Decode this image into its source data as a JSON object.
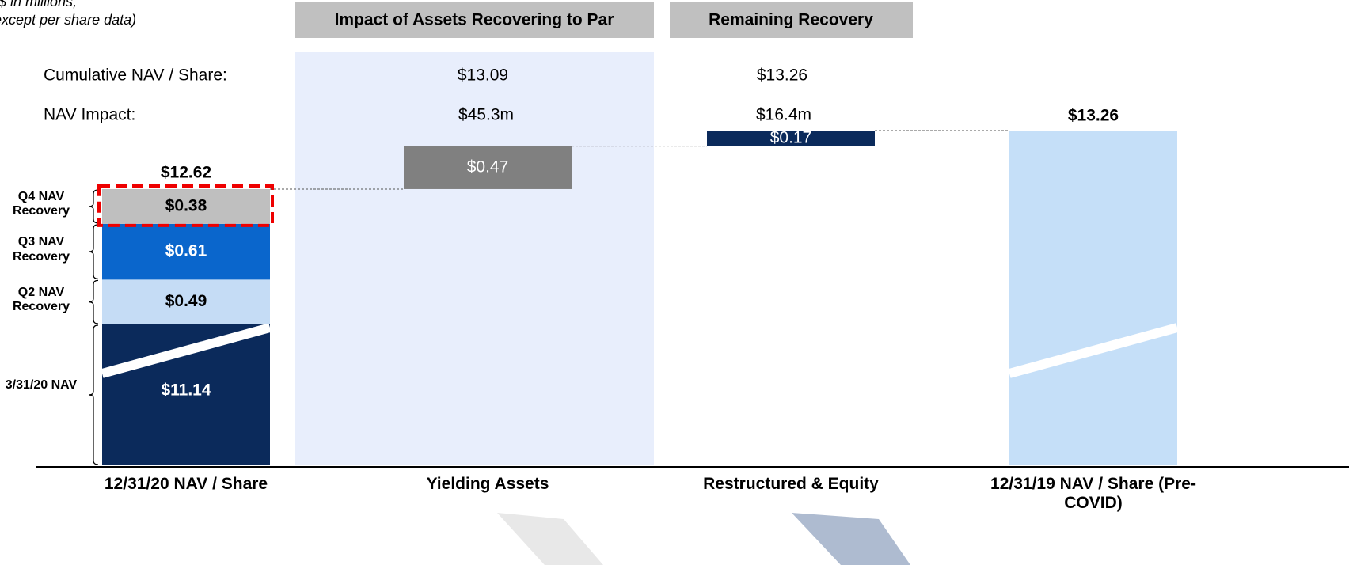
{
  "chart_data": {
    "type": "waterfall",
    "note": [
      "($ in millions,",
      "except per share data)"
    ],
    "headers": [
      "Impact of Assets Recovering to Par",
      "Remaining Recovery"
    ],
    "row_labels": [
      "Cumulative NAV / Share:",
      "NAV Impact:"
    ],
    "cumulative_nav_per_share": {
      "values": [
        13.09,
        13.26
      ],
      "value_labels": [
        "$13.09",
        "$13.26"
      ]
    },
    "nav_impact": {
      "values": [
        45.3,
        16.4
      ],
      "value_labels": [
        "$45.3m",
        "$16.4m"
      ]
    },
    "categories": [
      "12/31/20 NAV / Share",
      "Yielding Assets",
      "Restructured & Equity",
      "12/31/19 NAV / Share (Pre-COVID)"
    ],
    "stack": [
      {
        "name": "3/31/20 NAV",
        "value": 11.14,
        "value_label": "$11.14",
        "color": "#0b2a5b"
      },
      {
        "name": "Q2 NAV Recovery",
        "value": 0.49,
        "value_label": "$0.49",
        "color": "#c5dcf5"
      },
      {
        "name": "Q3 NAV Recovery",
        "value": 0.61,
        "value_label": "$0.61",
        "color": "#0a66cc"
      },
      {
        "name": "Q4 NAV Recovery",
        "value": 0.38,
        "value_label": "$0.38",
        "color": "#bfbfbf"
      }
    ],
    "total": {
      "value": 12.62,
      "value_label": "$12.62"
    },
    "steps": [
      {
        "value": 0.47,
        "value_label": "$0.47",
        "color": "#808080"
      },
      {
        "value": 0.17,
        "value_label": "$0.17",
        "color": "#0b2a5b"
      }
    ],
    "final": {
      "value": 13.26,
      "value_label": "$13.26",
      "color": "#c5dff8"
    }
  }
}
